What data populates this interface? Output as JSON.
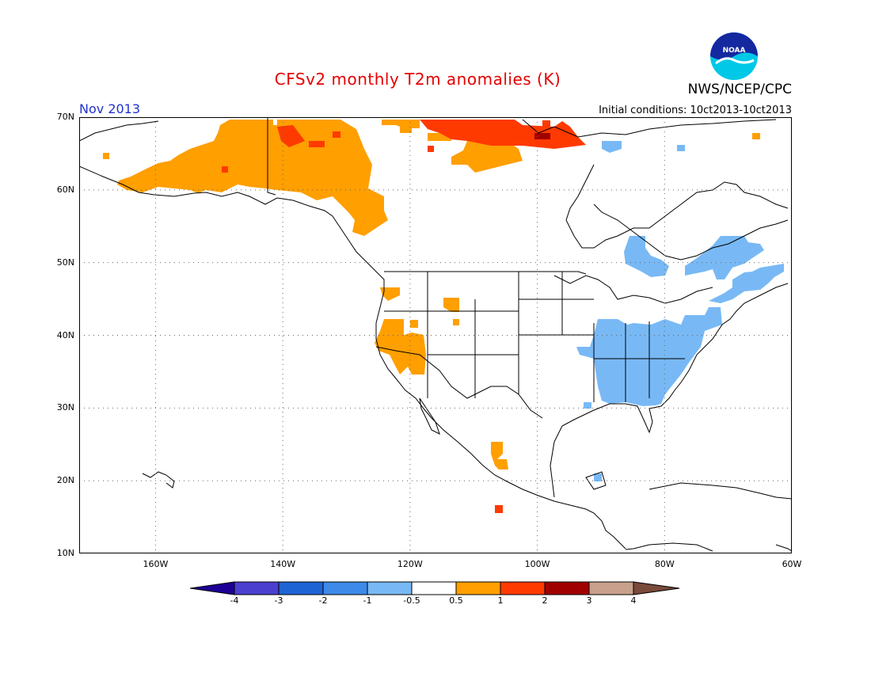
{
  "header": {
    "title": "CFSv2 monthly T2m anomalies (K)",
    "org": "NWS/NCEP/CPC",
    "period": "Nov 2013",
    "initial_conditions": "Initial conditions: 10ct2013-10ct2013",
    "logo_text": "NOAA"
  },
  "map": {
    "lat_labels": [
      "70N",
      "60N",
      "50N",
      "40N",
      "30N",
      "20N",
      "10N"
    ],
    "lon_labels": [
      "160W",
      "140W",
      "120W",
      "100W",
      "80W",
      "60W"
    ],
    "lat_values": [
      70,
      60,
      50,
      40,
      30,
      20,
      10
    ],
    "lon_values": [
      -160,
      -140,
      -120,
      -100,
      -80,
      -60
    ],
    "extent": {
      "lon": [
        -172,
        -60
      ],
      "lat": [
        10,
        70
      ]
    },
    "grid": "dotted",
    "anomaly_regions": [
      {
        "name": "Alaska / NW Canada",
        "level": "0.5 to 1",
        "color": "#ff9f00"
      },
      {
        "name": "Canadian Arctic coast",
        "level": "1 to 2",
        "color": "#ff3a00"
      },
      {
        "name": "California / Nevada",
        "level": "0.5 to 1",
        "color": "#ff9f00"
      },
      {
        "name": "West Mexico",
        "level": "0.5 to 1",
        "color": "#ff9f00"
      },
      {
        "name": "Eastern United States",
        "level": "-1 to -0.5",
        "color": "#78b9f5"
      },
      {
        "name": "Quebec / Labrador",
        "level": "-1 to -0.5",
        "color": "#78b9f5"
      }
    ]
  },
  "colorbar": {
    "labels": [
      "-4",
      "-3",
      "-2",
      "-1",
      "-0.5",
      "0.5",
      "1",
      "2",
      "3",
      "4"
    ],
    "colors": [
      "#1e0096",
      "#4b3fd0",
      "#1f64d4",
      "#3d8ae8",
      "#78b9f5",
      "#ffffff",
      "#ff9f00",
      "#ff3a00",
      "#a10000",
      "#c8a08c",
      "#7a4a3a"
    ]
  }
}
